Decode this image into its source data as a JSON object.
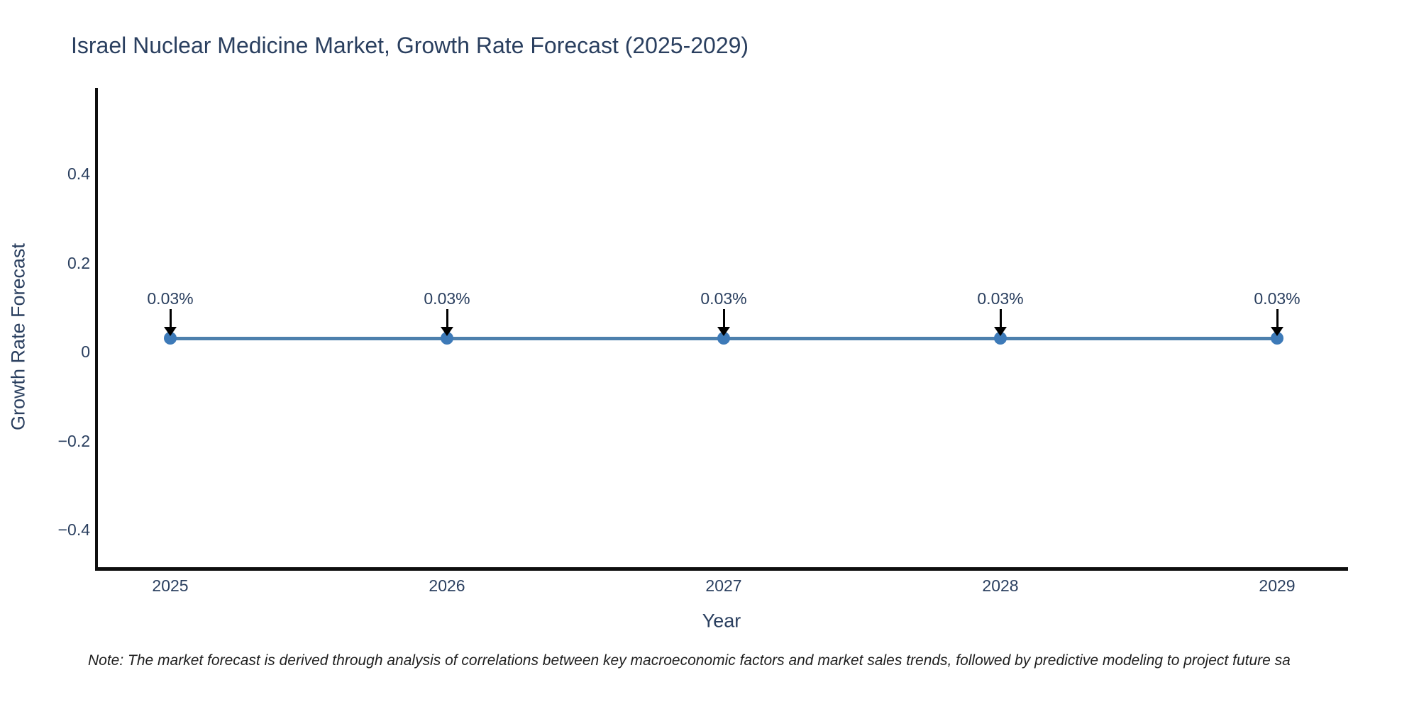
{
  "title": "Israel Nuclear Medicine Market, Growth Rate Forecast (2025-2029)",
  "note": "Note: The market forecast is derived through analysis of correlations between key macroeconomic factors and market sales trends, followed by predictive modeling to project future sa",
  "chart_data": {
    "type": "line",
    "title": "Israel Nuclear Medicine Market, Growth Rate Forecast (2025-2029)",
    "xlabel": "Year",
    "ylabel": "Growth Rate Forecast",
    "x": [
      2025,
      2026,
      2027,
      2028,
      2029
    ],
    "series": [
      {
        "name": "Growth Rate Forecast",
        "values": [
          0.03,
          0.03,
          0.03,
          0.03,
          0.03
        ]
      }
    ],
    "point_annotations": [
      "0.03%",
      "0.03%",
      "0.03%",
      "0.03%",
      "0.03%"
    ],
    "x_tick_labels": [
      "2025",
      "2026",
      "2027",
      "2028",
      "2029"
    ],
    "y_tick_labels": [
      "0.4",
      "0.2",
      "0",
      "−0.2",
      "−0.4"
    ],
    "y_tick_values": [
      0.4,
      0.2,
      0,
      -0.2,
      -0.4
    ],
    "ylim": [
      -0.49,
      0.59
    ],
    "grid": false,
    "legend": false,
    "colors": {
      "line": "#4d80ad",
      "marker": "#3d7ab8",
      "axis": "#0e0e0e",
      "chart_text": "#2a3f5f",
      "note_text": "#1f1f1f",
      "arrow": "#000000"
    }
  }
}
